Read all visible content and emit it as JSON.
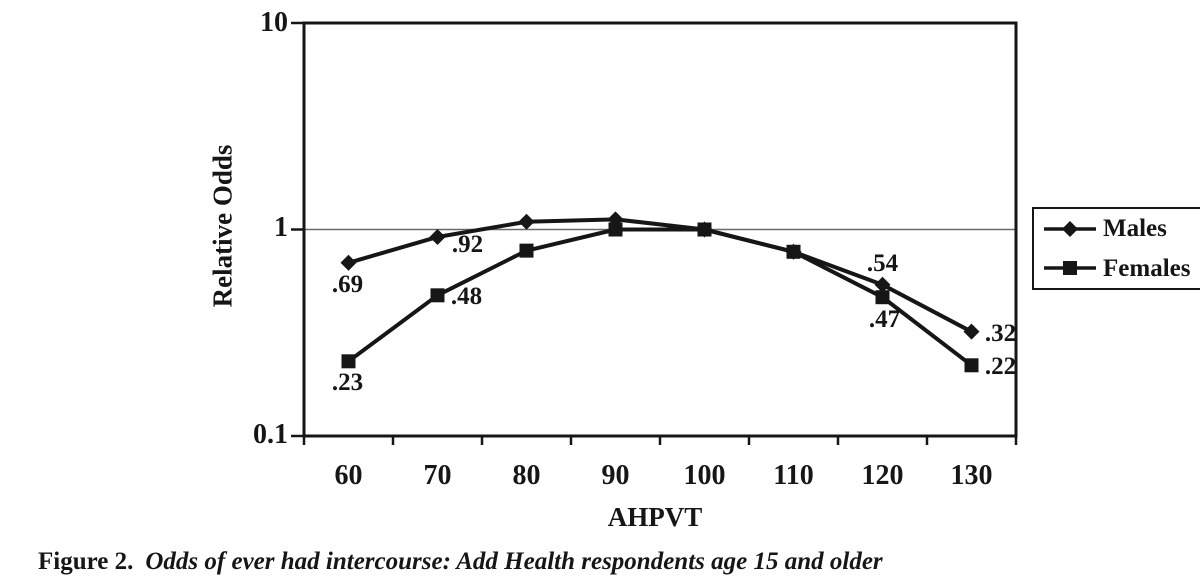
{
  "figure": {
    "caption_prefix": "Figure 2.",
    "caption_text": "Odds of ever had intercourse: Add Health respondents age 15 and older"
  },
  "chart_data": {
    "type": "line",
    "title": "",
    "xlabel": "AHPVT",
    "ylabel": "Relative Odds",
    "x": [
      60,
      70,
      80,
      90,
      100,
      110,
      120,
      130
    ],
    "y_scale": "log10",
    "ylim": [
      0.1,
      10
    ],
    "y_tick_labels": [
      "10",
      "1",
      "0.1"
    ],
    "y_tick_values": [
      10,
      1,
      0.1
    ],
    "reference_line_y": 1,
    "grid": "single horizontal gridline at y=1",
    "legend_position": "right-outside",
    "ink_color": "#161616",
    "grid_color": "#6a6a6a",
    "background_color": "#ffffff",
    "series": [
      {
        "name": "Males",
        "marker": "diamond",
        "values": [
          0.69,
          0.92,
          1.09,
          1.12,
          1.0,
          0.78,
          0.54,
          0.32
        ]
      },
      {
        "name": "Females",
        "marker": "square",
        "values": [
          0.23,
          0.48,
          0.79,
          1.0,
          1.0,
          0.78,
          0.47,
          0.22
        ]
      }
    ],
    "point_labels": [
      {
        "series": 0,
        "i": 0,
        "text": ".69",
        "pos": "below"
      },
      {
        "series": 0,
        "i": 1,
        "text": ".92",
        "pos": "right-down"
      },
      {
        "series": 0,
        "i": 6,
        "text": ".54",
        "pos": "above"
      },
      {
        "series": 0,
        "i": 7,
        "text": ".32",
        "pos": "right"
      },
      {
        "series": 1,
        "i": 0,
        "text": ".23",
        "pos": "below"
      },
      {
        "series": 1,
        "i": 1,
        "text": ".48",
        "pos": "right"
      },
      {
        "series": 1,
        "i": 6,
        "text": ".47",
        "pos": "below-right"
      },
      {
        "series": 1,
        "i": 7,
        "text": ".22",
        "pos": "right"
      }
    ]
  }
}
